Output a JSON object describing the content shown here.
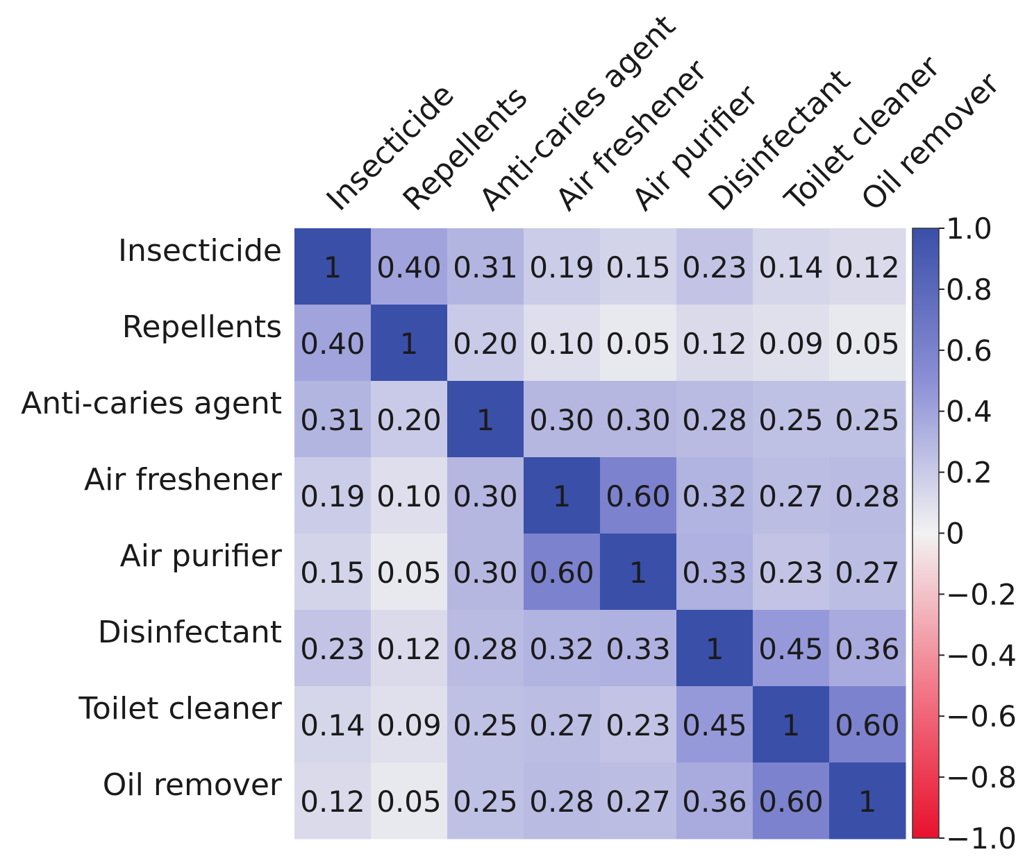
{
  "chart_data": {
    "type": "heatmap",
    "title": "",
    "xlabel": "",
    "ylabel": "",
    "x_categories": [
      "Insecticide",
      "Repellents",
      "Anti-caries agent",
      "Air freshener",
      "Air purifier",
      "Disinfectant",
      "Toilet cleaner",
      "Oil remover"
    ],
    "y_categories": [
      "Insecticide",
      "Repellents",
      "Anti-caries agent",
      "Air freshener",
      "Air purifier",
      "Disinfectant",
      "Toilet cleaner",
      "Oil remover"
    ],
    "values": [
      [
        1,
        0.4,
        0.31,
        0.19,
        0.15,
        0.23,
        0.14,
        0.12
      ],
      [
        0.4,
        1,
        0.2,
        0.1,
        0.05,
        0.12,
        0.09,
        0.05
      ],
      [
        0.31,
        0.2,
        1,
        0.3,
        0.3,
        0.28,
        0.25,
        0.25
      ],
      [
        0.19,
        0.1,
        0.3,
        1,
        0.6,
        0.32,
        0.27,
        0.28
      ],
      [
        0.15,
        0.05,
        0.3,
        0.6,
        1,
        0.33,
        0.23,
        0.27
      ],
      [
        0.23,
        0.12,
        0.28,
        0.32,
        0.33,
        1,
        0.45,
        0.36
      ],
      [
        0.14,
        0.09,
        0.25,
        0.27,
        0.23,
        0.45,
        1,
        0.6
      ],
      [
        0.12,
        0.05,
        0.25,
        0.28,
        0.27,
        0.36,
        0.6,
        1
      ]
    ],
    "labels": [
      [
        "1",
        "0.40",
        "0.31",
        "0.19",
        "0.15",
        "0.23",
        "0.14",
        "0.12"
      ],
      [
        "0.40",
        "1",
        "0.20",
        "0.10",
        "0.05",
        "0.12",
        "0.09",
        "0.05"
      ],
      [
        "0.31",
        "0.20",
        "1",
        "0.30",
        "0.30",
        "0.28",
        "0.25",
        "0.25"
      ],
      [
        "0.19",
        "0.10",
        "0.30",
        "1",
        "0.60",
        "0.32",
        "0.27",
        "0.28"
      ],
      [
        "0.15",
        "0.05",
        "0.30",
        "0.60",
        "1",
        "0.33",
        "0.23",
        "0.27"
      ],
      [
        "0.23",
        "0.12",
        "0.28",
        "0.32",
        "0.33",
        "1",
        "0.45",
        "0.36"
      ],
      [
        "0.14",
        "0.09",
        "0.25",
        "0.27",
        "0.23",
        "0.45",
        "1",
        "0.60"
      ],
      [
        "0.12",
        "0.05",
        "0.25",
        "0.28",
        "0.27",
        "0.36",
        "0.60",
        "1"
      ]
    ],
    "colorbar": {
      "range": [
        -1.0,
        1.0
      ],
      "ticks": [
        1.0,
        0.8,
        0.6,
        0.4,
        0.2,
        0,
        -0.2,
        -0.4,
        -0.6,
        -0.8,
        -1.0
      ],
      "tick_labels": [
        "1.0",
        "0.8",
        "0.6",
        "0.4",
        "0.2",
        "0",
        "−0.2",
        "−0.4",
        "−0.6",
        "−0.8",
        "−1.0"
      ],
      "colors": {
        "positive": "#3a4fa8",
        "neutral": "#f2f2f2",
        "negative": "#e8112d"
      },
      "position": "right"
    },
    "x_tick_rotation": "45deg",
    "grid": false,
    "legend": "none"
  }
}
